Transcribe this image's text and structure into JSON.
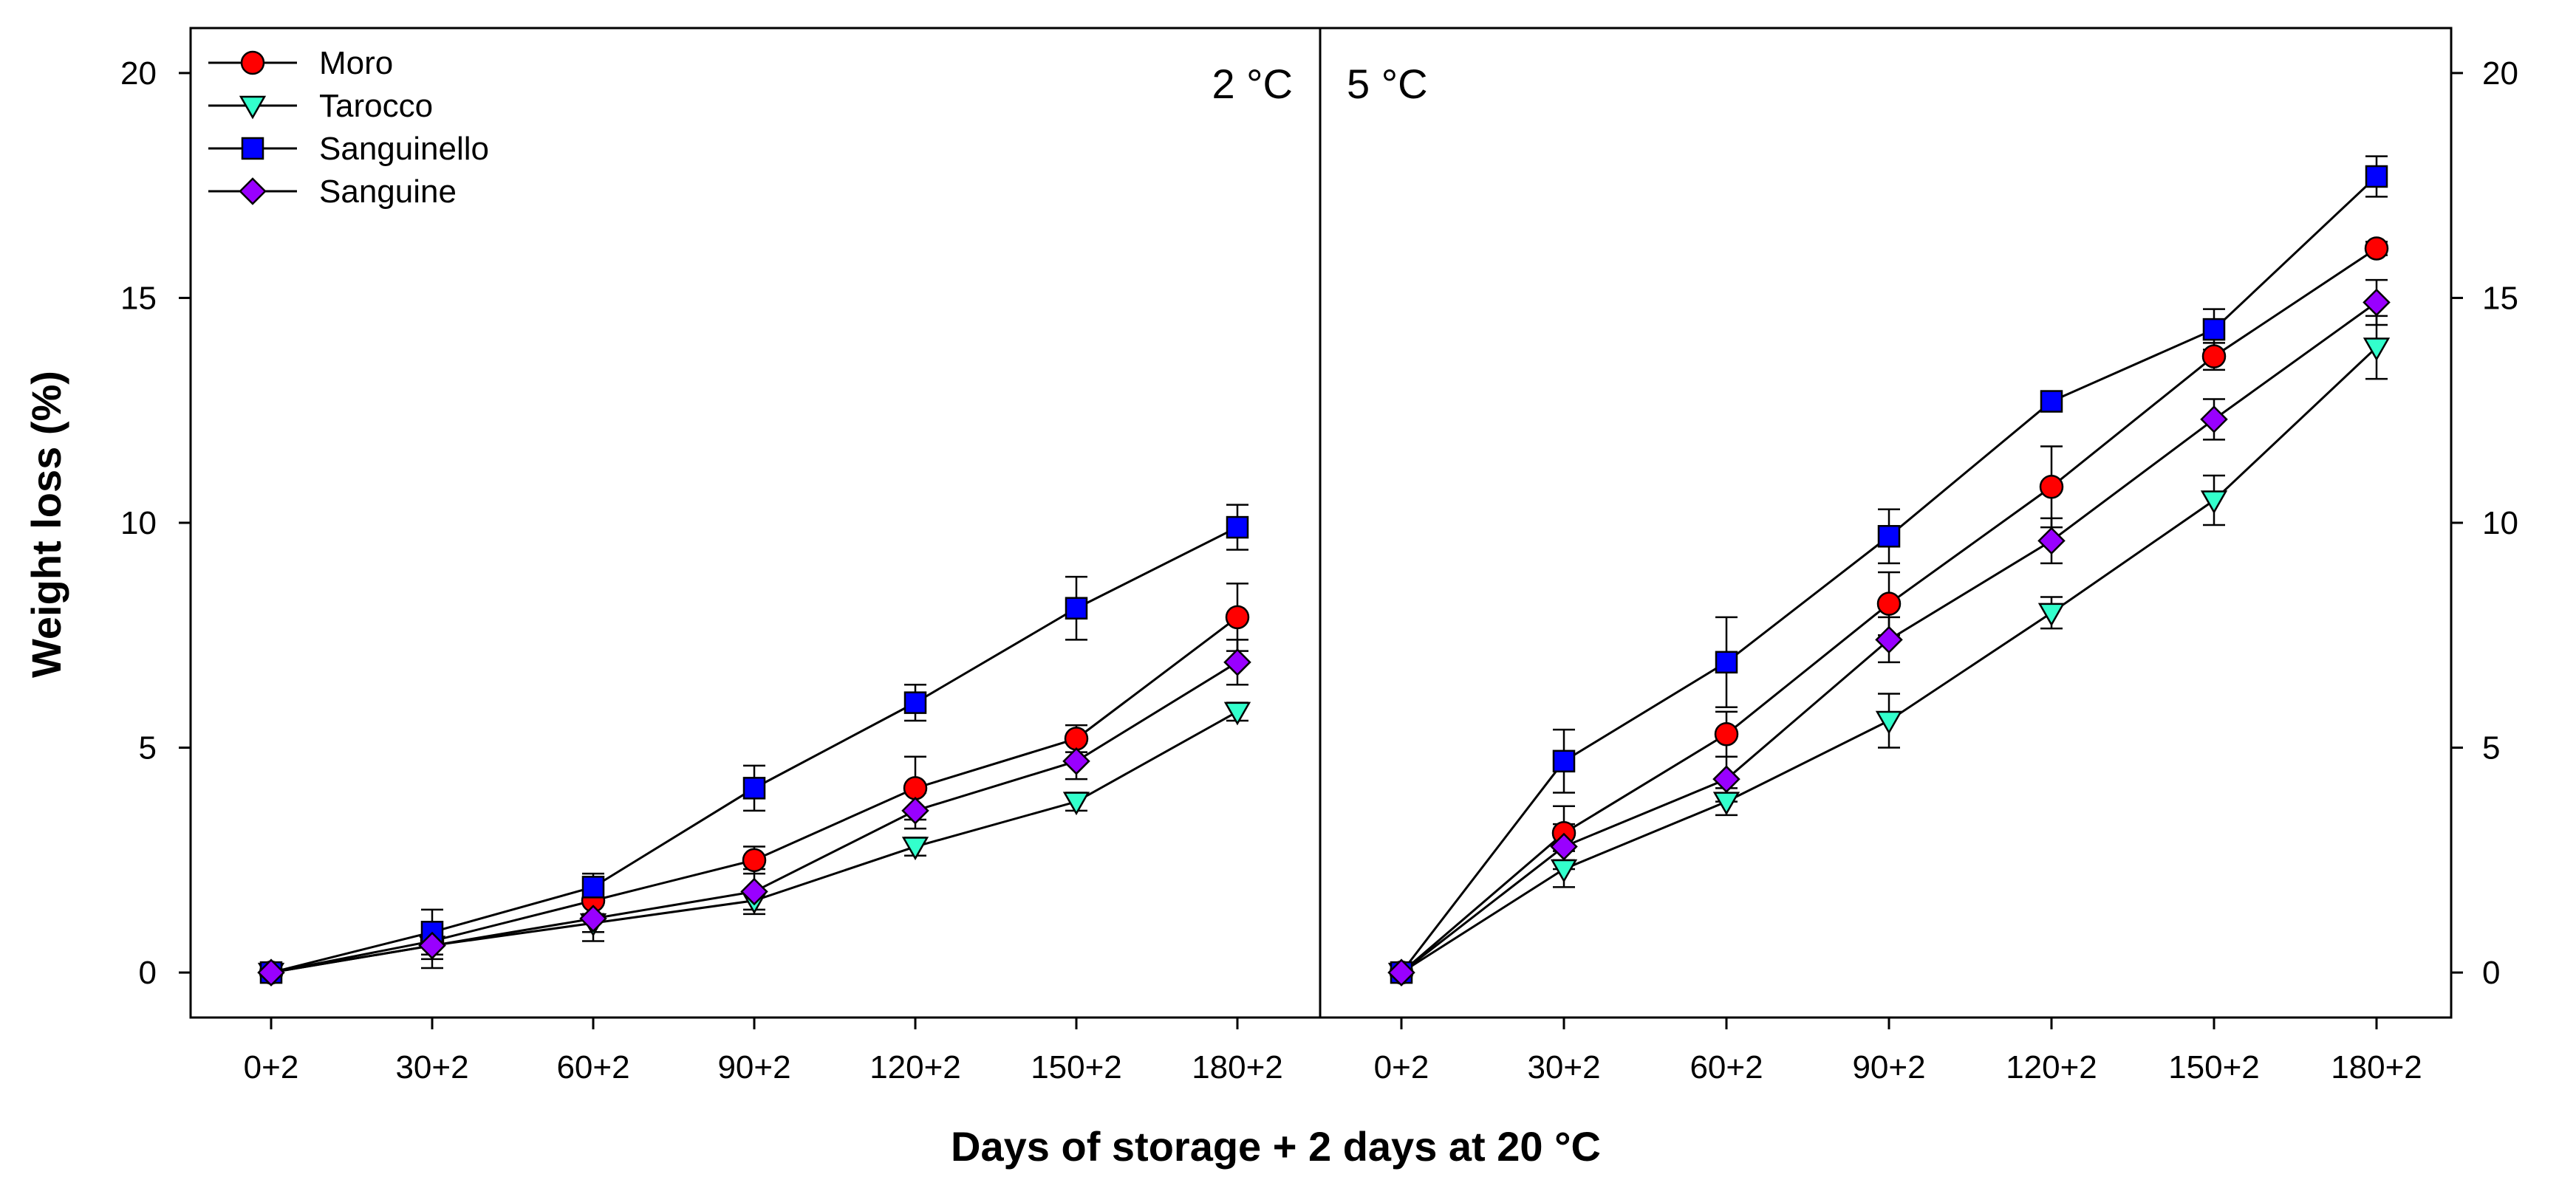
{
  "chart_data": {
    "type": "line",
    "categories": [
      "0+2",
      "30+2",
      "60+2",
      "90+2",
      "120+2",
      "150+2",
      "180+2"
    ],
    "xlabel": "Days of storage + 2 days at 20 °C",
    "ylabel": "Weight loss (%)",
    "ylim": [
      -1,
      21
    ],
    "yticks": [
      "0",
      "5",
      "10",
      "15",
      "20"
    ],
    "legend_position": "top-left",
    "legend": [
      "Moro",
      "Tarocco",
      "Sanguinello",
      "Sanguine"
    ],
    "colors": {
      "Moro": "#ff0000",
      "Tarocco": "#33ffcc",
      "Sanguinello": "#0000ff",
      "Sanguine": "#9900ff",
      "line": "#000000"
    },
    "markers": {
      "Moro": "circle",
      "Tarocco": "triangle-down",
      "Sanguinello": "square",
      "Sanguine": "diamond"
    },
    "panels": [
      {
        "title": "2 °C",
        "series": [
          {
            "name": "Moro",
            "values": [
              0,
              0.7,
              1.6,
              2.5,
              4.1,
              5.2,
              7.9
            ],
            "errors": [
              0.05,
              0.3,
              0.3,
              0.3,
              0.7,
              0.3,
              0.75
            ]
          },
          {
            "name": "Tarocco",
            "values": [
              0,
              0.6,
              1.1,
              1.6,
              2.8,
              3.8,
              5.8
            ],
            "errors": [
              0.05,
              0.3,
              0.2,
              0.2,
              0.2,
              0.2,
              0.2
            ]
          },
          {
            "name": "Sanguinello",
            "values": [
              0,
              0.9,
              1.9,
              4.1,
              6.0,
              8.1,
              9.9
            ],
            "errors": [
              0.05,
              0.5,
              0.3,
              0.5,
              0.4,
              0.7,
              0.5
            ]
          },
          {
            "name": "Sanguine",
            "values": [
              0,
              0.6,
              1.2,
              1.8,
              3.6,
              4.7,
              6.9
            ],
            "errors": [
              0.05,
              0.5,
              0.5,
              0.5,
              0.4,
              0.4,
              0.5
            ]
          }
        ]
      },
      {
        "title": "5 °C",
        "series": [
          {
            "name": "Moro",
            "values": [
              0,
              3.1,
              5.3,
              8.2,
              10.8,
              13.7,
              16.1
            ],
            "errors": [
              0.05,
              0.6,
              0.5,
              0.7,
              0.9,
              0.3,
              0.15
            ]
          },
          {
            "name": "Tarocco",
            "values": [
              0,
              2.3,
              3.8,
              5.6,
              8.0,
              10.5,
              13.9
            ],
            "errors": [
              0.05,
              0.4,
              0.3,
              0.6,
              0.35,
              0.55,
              0.7
            ]
          },
          {
            "name": "Sanguinello",
            "values": [
              0,
              4.7,
              6.9,
              9.7,
              12.7,
              14.3,
              17.7
            ],
            "errors": [
              0.05,
              0.7,
              1.0,
              0.6,
              0.2,
              0.45,
              0.45
            ]
          },
          {
            "name": "Sanguine",
            "values": [
              0,
              2.8,
              4.3,
              7.4,
              9.6,
              12.3,
              14.9
            ],
            "errors": [
              0.05,
              0.5,
              0.5,
              0.5,
              0.5,
              0.45,
              0.5
            ]
          }
        ]
      }
    ]
  }
}
